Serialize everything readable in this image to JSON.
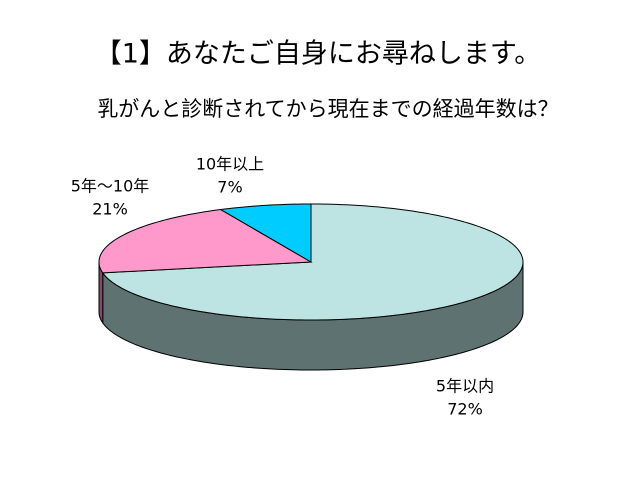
{
  "chart_data": {
    "type": "pie",
    "title": "【1】あなたご自身にお尋ねします。",
    "subtitle": "乳がんと診断されてから現在までの経過年数は？",
    "categories": [
      "5年以内",
      "5年～10年",
      "10年以上"
    ],
    "values": [
      72,
      21,
      7
    ],
    "value_labels": [
      "72%",
      "21%",
      "7%"
    ],
    "colors": [
      "#bde3e3",
      "#ff99cc",
      "#00ccff"
    ]
  }
}
